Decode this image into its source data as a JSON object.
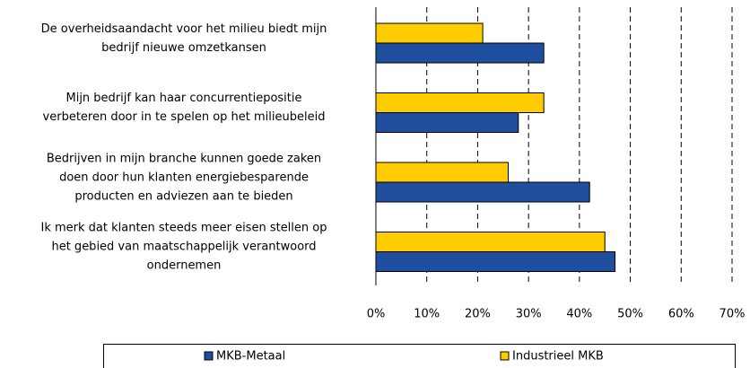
{
  "chart_data": {
    "type": "hbar",
    "categories": [
      "De overheidsaandacht voor het milieu biedt mijn\nbedrijf nieuwe omzetkansen",
      "Mijn bedrijf kan haar concurrentiepositie\nverbeteren door in te spelen op het milieubeleid",
      "Bedrijven in mijn branche kunnen goede zaken\ndoen door hun klanten energiebesparende\nproducten en adviezen aan te bieden",
      "Ik merk dat klanten steeds meer eisen stellen op\nhet gebied van maatschappelijk verantwoord\nondernemen"
    ],
    "series": [
      {
        "name": "MKB-Metaal",
        "color": "#1f4e9e",
        "values": [
          33,
          28,
          42,
          47
        ]
      },
      {
        "name": "Industrieel MKB",
        "color": "#ffcc00",
        "values": [
          21,
          33,
          26,
          45
        ]
      }
    ],
    "xlim": [
      0,
      70
    ],
    "xticks": [
      {
        "value": 0,
        "label": "0%"
      },
      {
        "value": 10,
        "label": "10%"
      },
      {
        "value": 20,
        "label": "20%"
      },
      {
        "value": 30,
        "label": "30%"
      },
      {
        "value": 40,
        "label": "40%"
      },
      {
        "value": 50,
        "label": "50%"
      },
      {
        "value": 60,
        "label": "60%"
      },
      {
        "value": 70,
        "label": "70%"
      }
    ],
    "grid": true,
    "legend": "bottom"
  }
}
